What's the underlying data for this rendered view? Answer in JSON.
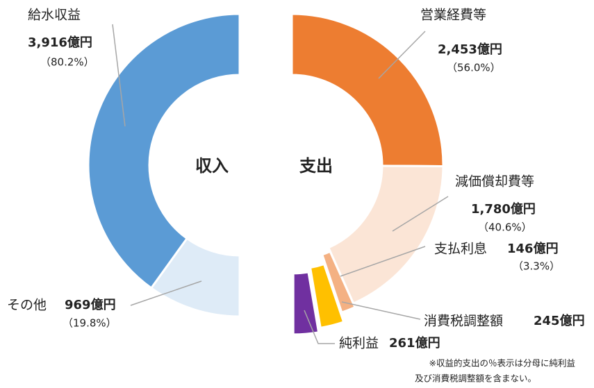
{
  "chart_data": [
    {
      "type": "pie",
      "title": "収入",
      "categories": [
        "給水収益",
        "その他"
      ],
      "values": [
        3916,
        969
      ],
      "value_labels": [
        "3,916億円",
        "969億円"
      ],
      "percent_labels": [
        "（80.2%）",
        "（19.8%）"
      ],
      "colors": [
        "#5b9bd5",
        "#deebf7"
      ]
    },
    {
      "type": "pie",
      "title": "支出",
      "categories": [
        "営業経費等",
        "減価償却費等",
        "支払利息",
        "消費税調整額",
        "純利益"
      ],
      "values": [
        2453,
        1780,
        146,
        245,
        261
      ],
      "value_labels": [
        "2,453億円",
        "1,780億円",
        "146億円",
        "245億円",
        "261億円"
      ],
      "percent_labels": [
        "（56.0%）",
        "（40.6%）",
        "（3.3%）",
        null,
        null
      ],
      "colors": [
        "#ed7d31",
        "#fbe5d6",
        "#f4b183",
        "#ffc000",
        "#7030a0"
      ],
      "annotations": [
        "※収益的支出の％表示は分母に純利益",
        "及び消費税調整額を含まない。"
      ]
    }
  ]
}
